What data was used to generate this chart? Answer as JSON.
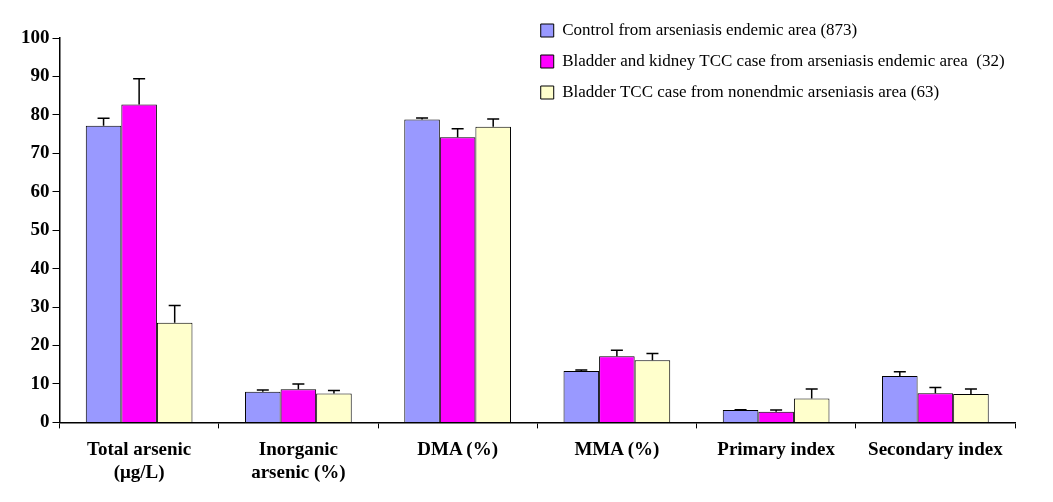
{
  "chart_data": {
    "type": "bar",
    "categories": [
      "Total arsenic (μg/L)",
      "Inorganic arsenic (%)",
      "DMA (%)",
      "MMA (%)",
      "Primary index",
      "Secondary index"
    ],
    "series": [
      {
        "name": "Control from arseniasis endemic area (873)",
        "color": "#9999ff",
        "values": [
          77.2,
          8.0,
          78.8,
          13.4,
          3.2,
          12.1
        ],
        "errors": [
          [
            77.2,
            79.1
          ],
          [
            8.0,
            8.4
          ],
          [
            78.8,
            79.2
          ],
          [
            13.4,
            13.6
          ],
          [
            3.2,
            3.3
          ],
          [
            12.1,
            13.2
          ]
        ]
      },
      {
        "name": "Bladder and kidney TCC case from arseniasis endemic area  (32)",
        "color": "#ff00ff",
        "values": [
          82.7,
          8.6,
          74.2,
          17.2,
          2.8,
          7.6
        ],
        "errors": [
          [
            82.7,
            89.4
          ],
          [
            8.6,
            10.0
          ],
          [
            74.2,
            76.4
          ],
          [
            17.2,
            18.8
          ],
          [
            2.8,
            3.2
          ],
          [
            7.6,
            9.1
          ]
        ]
      },
      {
        "name": "Bladder TCC case from nonendmic arseniasis area (63)",
        "color": "#ffffcc",
        "values": [
          25.9,
          7.5,
          76.9,
          16.2,
          6.2,
          7.4
        ],
        "errors": [
          [
            25.9,
            30.4
          ],
          [
            7.5,
            8.3
          ],
          [
            76.9,
            78.9
          ],
          [
            16.2,
            17.9
          ],
          [
            6.2,
            8.7
          ],
          [
            7.4,
            8.7
          ]
        ]
      }
    ],
    "ylim": [
      0,
      100
    ],
    "yticks": [
      0,
      10,
      20,
      30,
      40,
      50,
      60,
      70,
      80,
      90,
      100
    ],
    "grid": false,
    "legend": "top right"
  }
}
